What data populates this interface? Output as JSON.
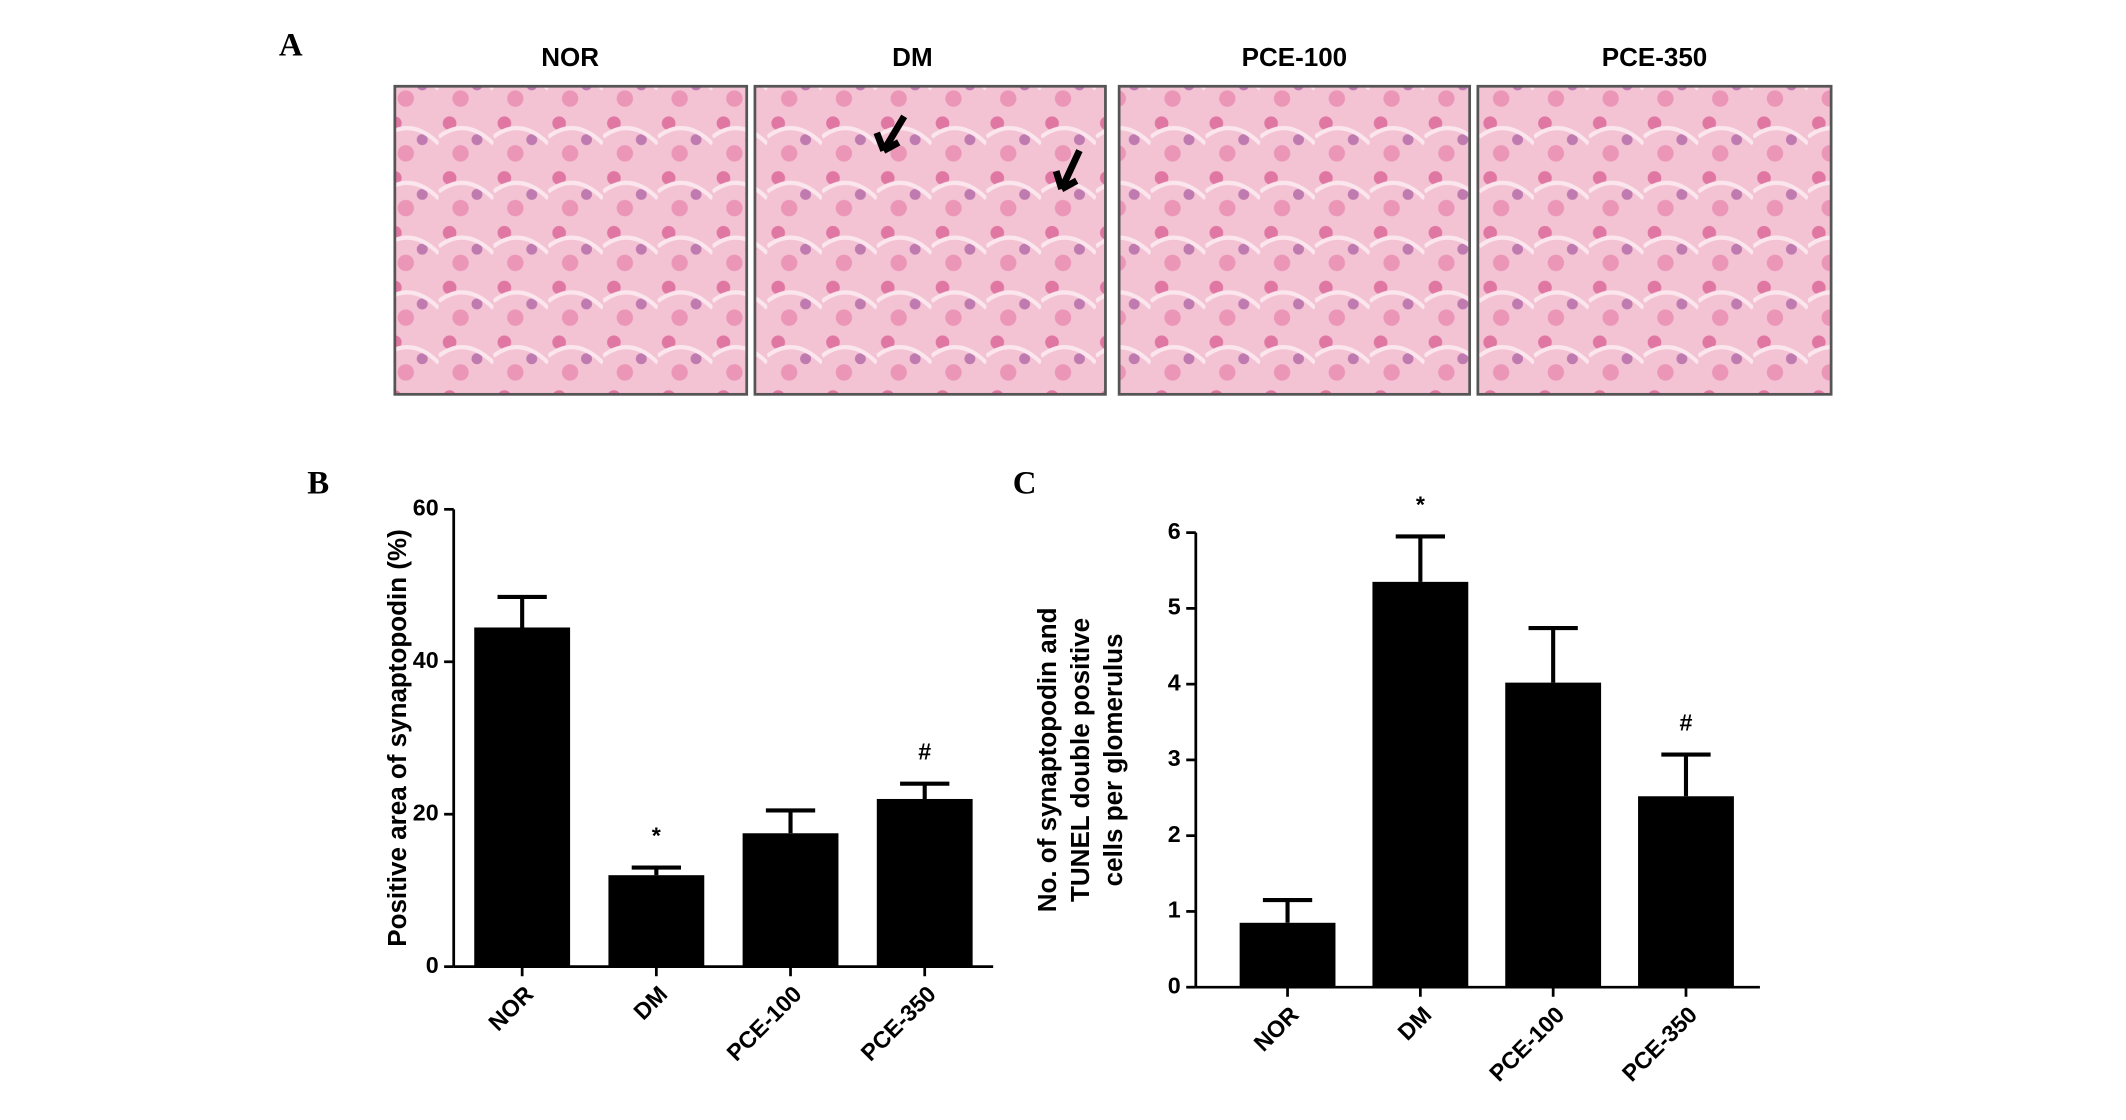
{
  "panel_a": {
    "label": "A",
    "images": [
      "NOR",
      "DM",
      "PCE-100",
      "PCE-350"
    ]
  },
  "chart_data": [
    {
      "type": "bar",
      "panel_label": "B",
      "ylabel": [
        "Positive area of synaptopodin (%)"
      ],
      "categories": [
        "NOR",
        "DM",
        "PCE-100",
        "PCE-350"
      ],
      "values": [
        44.5,
        12,
        17.5,
        22
      ],
      "errors": [
        4,
        1,
        3,
        2
      ],
      "annotations": [
        null,
        "*",
        null,
        "#"
      ],
      "color": "#000000",
      "ylim": [
        0,
        60
      ],
      "yticks": [
        0,
        20,
        40,
        60
      ]
    },
    {
      "type": "bar",
      "panel_label": "C",
      "ylabel": [
        "No. of synaptopodin and",
        "TUNEL double positive",
        "cells per glomerulus"
      ],
      "categories": [
        "NOR",
        "DM",
        "PCE-100",
        "PCE-350"
      ],
      "values": [
        0.85,
        5.35,
        4.02,
        2.52
      ],
      "errors": [
        0.3,
        0.6,
        0.72,
        0.55
      ],
      "annotations": [
        null,
        "*",
        null,
        "#"
      ],
      "color": "#000000",
      "ylim": [
        0,
        6
      ],
      "yticks": [
        0,
        1,
        2,
        3,
        4,
        5,
        6
      ]
    }
  ]
}
